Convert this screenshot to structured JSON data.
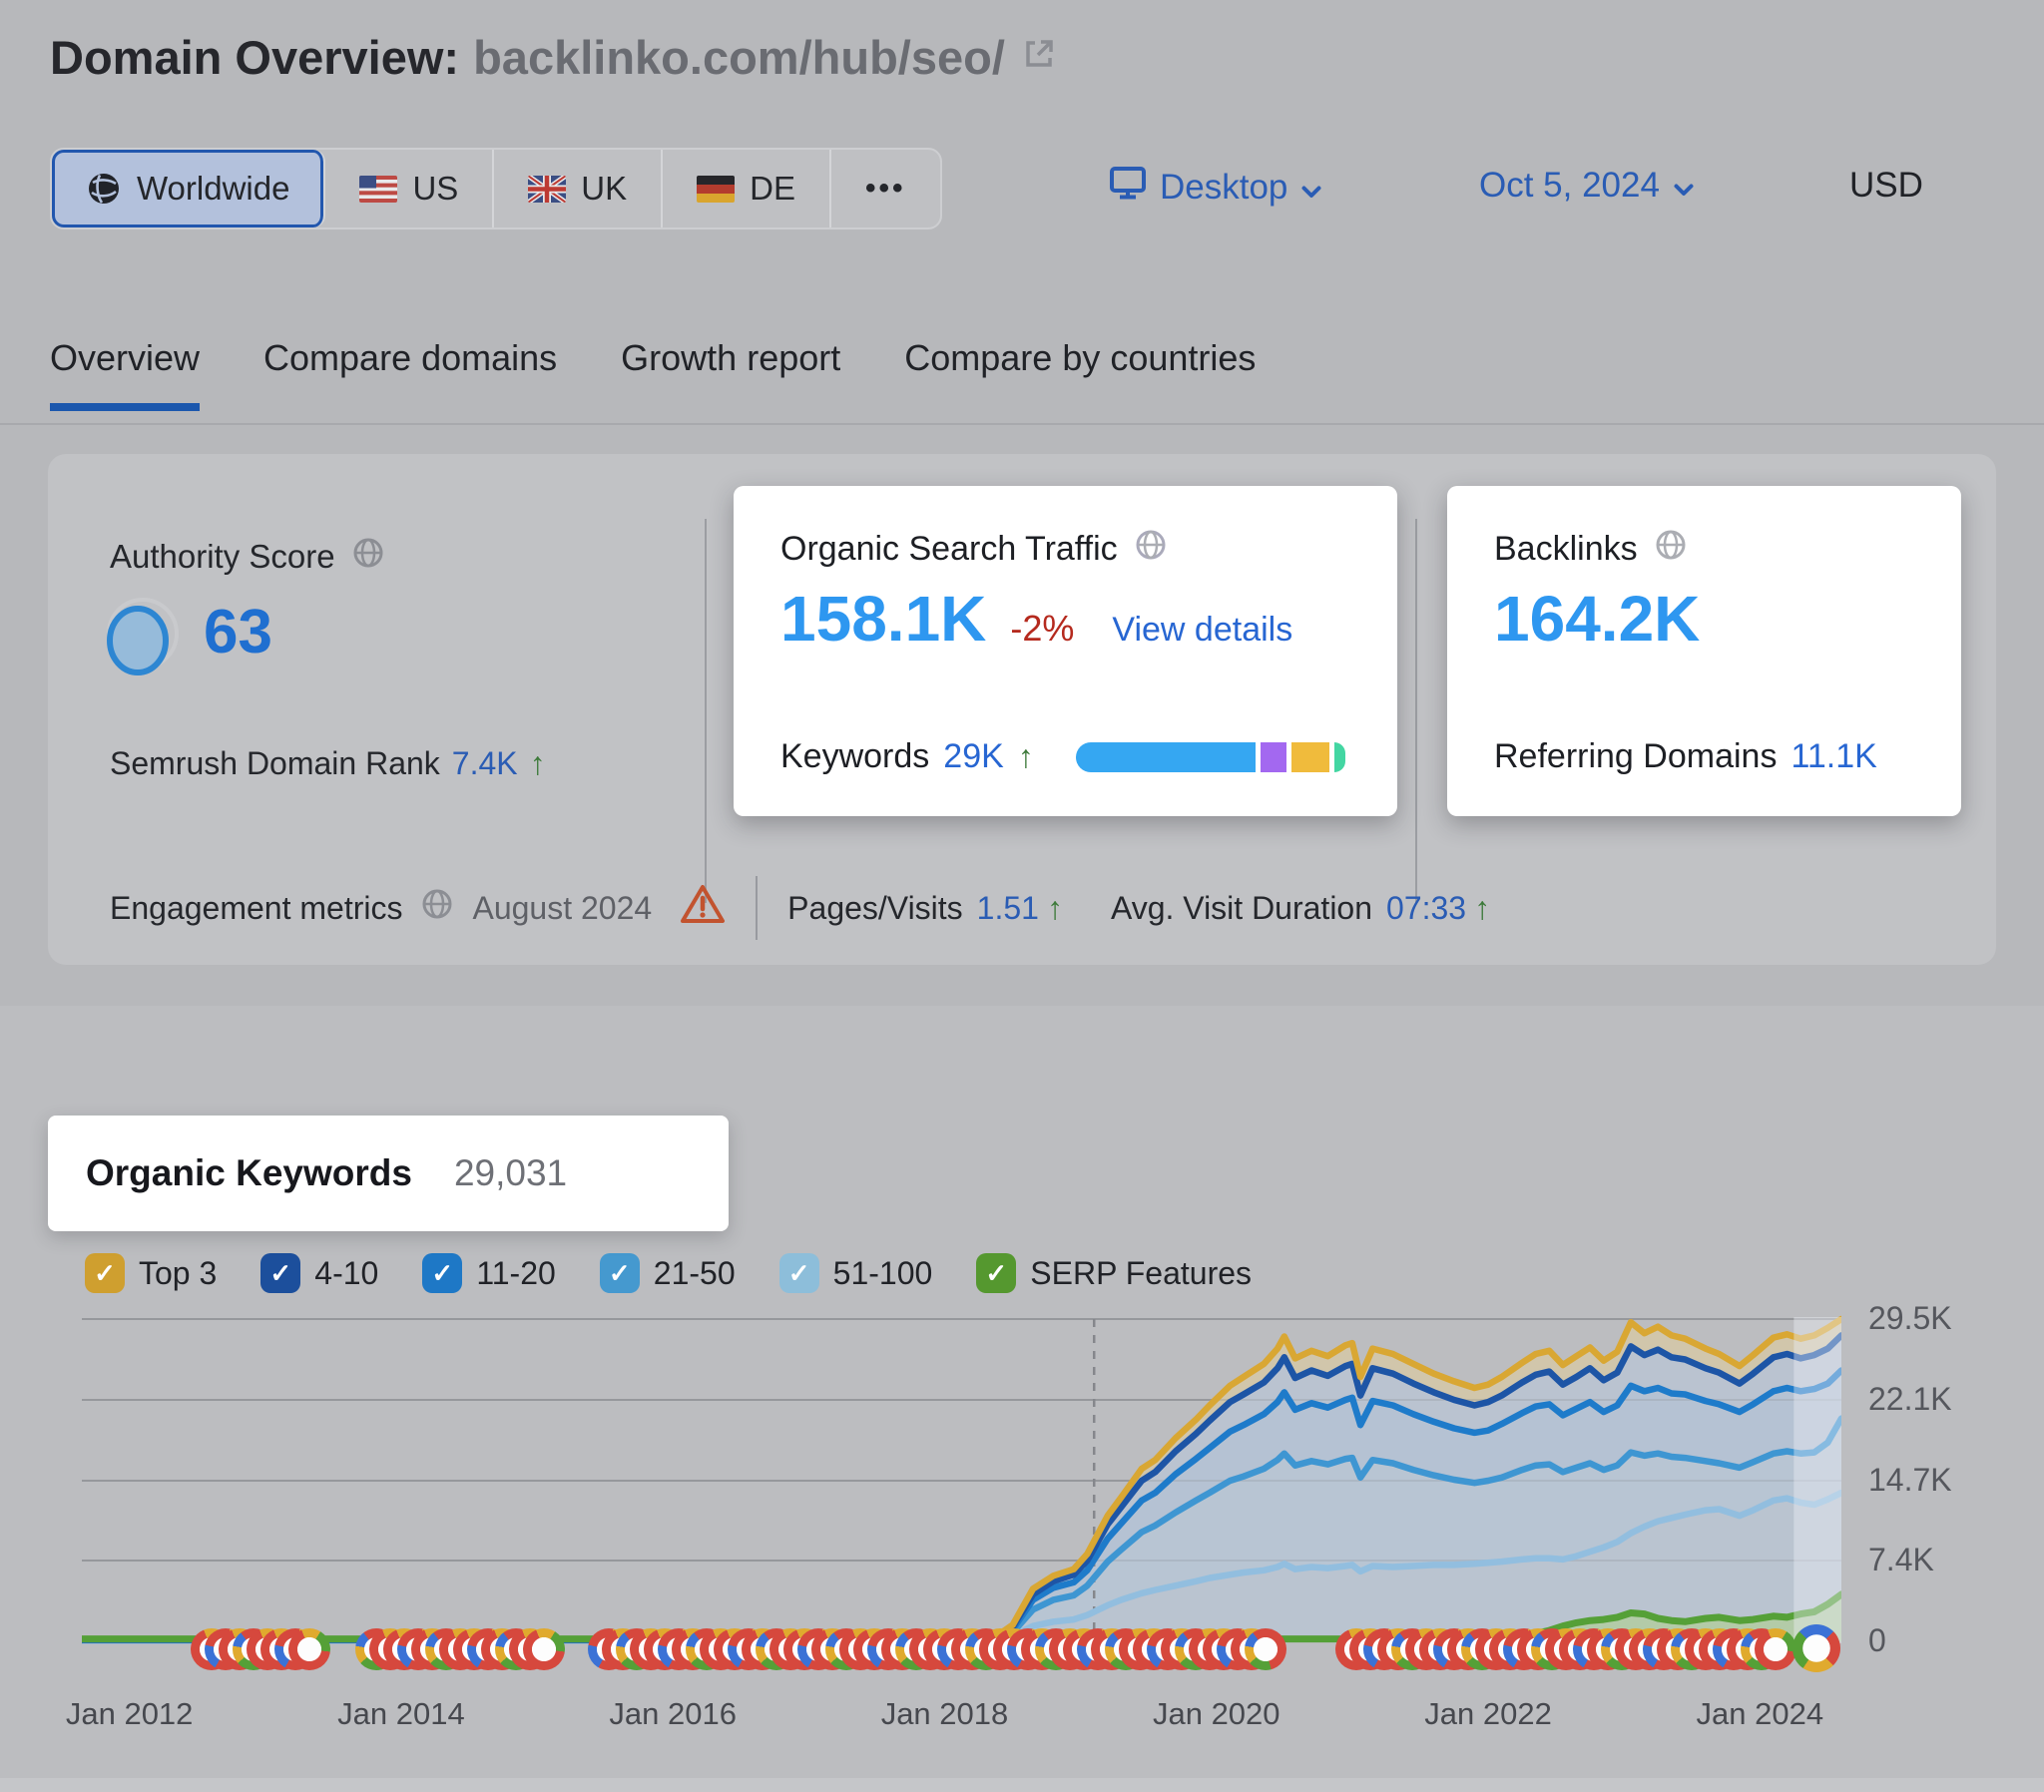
{
  "header": {
    "title_label": "Domain Overview:",
    "title_domain": "backlinko.com/hub/seo/"
  },
  "filters": {
    "regions": [
      {
        "label": "Worldwide",
        "icon": "globe",
        "selected": true
      },
      {
        "label": "US",
        "flag": "us",
        "selected": false
      },
      {
        "label": "UK",
        "flag": "uk",
        "selected": false
      },
      {
        "label": "DE",
        "flag": "de",
        "selected": false
      }
    ],
    "more_label": "•••",
    "device_label": "Desktop",
    "date_label": "Oct 5, 2024",
    "currency_label": "USD"
  },
  "tabs": [
    {
      "label": "Overview",
      "active": true
    },
    {
      "label": "Compare domains",
      "active": false
    },
    {
      "label": "Growth report",
      "active": false
    },
    {
      "label": "Compare by countries",
      "active": false
    }
  ],
  "metrics": {
    "authority": {
      "title": "Authority Score",
      "score": "63",
      "sub_label": "Semrush Domain Rank",
      "sub_value": "7.4K",
      "trend": "↑"
    },
    "traffic": {
      "title": "Organic Search Traffic",
      "value": "158.1K",
      "change": "-2%",
      "link": "View details",
      "keywords_label": "Keywords",
      "keywords_value": "29K",
      "trend": "↑",
      "bar_segments": [
        {
          "name": "blue",
          "color": "#35a7f2",
          "width": 180
        },
        {
          "name": "purple",
          "color": "#a368f0",
          "width": 26
        },
        {
          "name": "yellow",
          "color": "#f0bb3c",
          "width": 38
        },
        {
          "name": "green",
          "color": "#43d6a2",
          "width": 11
        }
      ]
    },
    "backlinks": {
      "title": "Backlinks",
      "value": "164.2K",
      "sub_label": "Referring Domains",
      "sub_value": "11.1K"
    },
    "engagement": {
      "title": "Engagement metrics",
      "period": "August 2024",
      "pages_label": "Pages/Visits",
      "pages_value": "1.51",
      "duration_label": "Avg. Visit Duration",
      "duration_value": "07:33",
      "trend": "↑"
    }
  },
  "keywords_section": {
    "title": "Organic Keywords",
    "count": "29,031"
  },
  "chart_data": {
    "type": "area",
    "title": "Organic Keywords positions over time",
    "xrange": [
      2011.65,
      2024.6
    ],
    "ymax": 29.5,
    "grid": true,
    "dashed_line_x": 2019.1,
    "highlight_band_x": [
      2024.25,
      2024.6
    ],
    "yticks": [
      {
        "label": "29.5K",
        "v": 29.5
      },
      {
        "label": "22.1K",
        "v": 22.1
      },
      {
        "label": "14.7K",
        "v": 14.7
      },
      {
        "label": "7.4K",
        "v": 7.4
      },
      {
        "label": "0",
        "v": 0
      }
    ],
    "xticks": [
      {
        "label": "Jan 2012",
        "year": 2012
      },
      {
        "label": "Jan 2014",
        "year": 2014
      },
      {
        "label": "Jan 2016",
        "year": 2016
      },
      {
        "label": "Jan 2018",
        "year": 2018
      },
      {
        "label": "Jan 2020",
        "year": 2020
      },
      {
        "label": "Jan 2022",
        "year": 2022
      },
      {
        "label": "Jan 2024",
        "year": 2024
      }
    ],
    "x": [
      2011.65,
      2018.35,
      2018.5,
      2018.65,
      2018.8,
      2018.95,
      2019.05,
      2019.2,
      2019.3,
      2019.45,
      2019.55,
      2019.7,
      2019.85,
      2019.95,
      2020.1,
      2020.2,
      2020.35,
      2020.45,
      2020.5,
      2020.58,
      2020.7,
      2020.82,
      2020.95,
      2021.0,
      2021.06,
      2021.15,
      2021.3,
      2021.45,
      2021.6,
      2021.75,
      2021.9,
      2022.0,
      2022.1,
      2022.25,
      2022.35,
      2022.45,
      2022.55,
      2022.65,
      2022.75,
      2022.85,
      2022.95,
      2023.05,
      2023.15,
      2023.25,
      2023.35,
      2023.45,
      2023.6,
      2023.7,
      2023.85,
      2023.95,
      2024.1,
      2024.2,
      2024.3,
      2024.4,
      2024.5,
      2024.6
    ],
    "series": [
      {
        "name": "Top 3",
        "color": "#d9a733",
        "fill": "#d2c7a9",
        "values": [
          0.2,
          0.2,
          1.5,
          4.8,
          6.0,
          6.6,
          8.0,
          11.5,
          13.2,
          15.8,
          16.6,
          18.6,
          20.3,
          21.6,
          23.4,
          24.2,
          25.4,
          26.8,
          27.9,
          25.9,
          26.6,
          26.1,
          27.1,
          27.3,
          24.2,
          26.8,
          26.3,
          25.4,
          24.5,
          23.8,
          23.2,
          23.5,
          24.2,
          25.5,
          26.3,
          26.6,
          25.3,
          26.1,
          26.9,
          25.7,
          26.5,
          29.2,
          28.2,
          28.8,
          28.0,
          27.7,
          26.8,
          26.3,
          25.2,
          26.2,
          27.8,
          28.1,
          27.7,
          28.0,
          28.7,
          29.5
        ]
      },
      {
        "name": "4-10",
        "color": "#1d55a6",
        "fill": "#b7c2d2",
        "values": [
          0.16,
          0.16,
          1.3,
          4.3,
          5.5,
          6.1,
          7.4,
          10.7,
          12.3,
          14.7,
          15.5,
          17.4,
          19.0,
          20.2,
          21.9,
          22.6,
          23.7,
          25.0,
          26.0,
          24.1,
          24.8,
          24.3,
          25.2,
          25.4,
          22.5,
          25.0,
          24.5,
          23.6,
          22.8,
          22.1,
          21.6,
          21.9,
          22.5,
          23.7,
          24.4,
          24.7,
          23.5,
          24.2,
          25.0,
          23.9,
          24.6,
          27.0,
          26.2,
          26.7,
          26.0,
          25.8,
          25.0,
          24.6,
          23.6,
          24.5,
          26.0,
          26.3,
          25.9,
          26.2,
          26.8,
          28.0
        ]
      },
      {
        "name": "11-20",
        "color": "#1e7bca",
        "fill": "#b4c2d3",
        "values": [
          0.13,
          0.13,
          1.1,
          3.8,
          4.9,
          5.4,
          6.5,
          9.4,
          10.8,
          12.9,
          13.6,
          15.3,
          16.7,
          17.7,
          19.2,
          19.8,
          20.8,
          21.9,
          22.8,
          21.2,
          21.8,
          21.4,
          22.1,
          22.3,
          19.8,
          22.0,
          21.6,
          20.8,
          20.1,
          19.5,
          19.1,
          19.3,
          19.9,
          20.9,
          21.5,
          21.7,
          20.7,
          21.3,
          21.9,
          21.0,
          21.6,
          23.4,
          22.9,
          23.2,
          22.7,
          22.6,
          22.0,
          21.7,
          21.0,
          21.7,
          22.9,
          23.2,
          22.9,
          23.1,
          23.6,
          24.8
        ]
      },
      {
        "name": "21-50",
        "color": "#3e96d2",
        "fill": "#b9c5d2",
        "values": [
          0.1,
          0.1,
          0.8,
          2.9,
          3.8,
          4.2,
          5.1,
          7.3,
          8.4,
          10.0,
          10.6,
          11.8,
          12.9,
          13.6,
          14.7,
          15.1,
          15.8,
          16.6,
          17.2,
          16.1,
          16.5,
          16.2,
          16.7,
          16.8,
          15.0,
          16.6,
          16.3,
          15.7,
          15.2,
          14.8,
          14.5,
          14.7,
          15.0,
          15.7,
          16.1,
          16.2,
          15.5,
          15.9,
          16.3,
          15.7,
          16.1,
          17.3,
          17.0,
          17.2,
          16.9,
          16.8,
          16.5,
          16.3,
          15.9,
          16.4,
          17.2,
          17.4,
          17.2,
          17.3,
          18.2,
          20.4
        ]
      },
      {
        "name": "51-100",
        "color": "#92bedf",
        "fill": "#bac3cf",
        "values": [
          0.08,
          0.08,
          0.5,
          1.4,
          1.8,
          2.0,
          2.4,
          3.3,
          3.8,
          4.4,
          4.7,
          5.1,
          5.5,
          5.8,
          6.1,
          6.3,
          6.5,
          6.8,
          7.1,
          6.6,
          6.8,
          6.7,
          6.9,
          7.0,
          6.4,
          6.9,
          6.8,
          6.9,
          7.0,
          7.0,
          7.1,
          7.2,
          7.3,
          7.5,
          7.6,
          7.6,
          7.5,
          7.8,
          8.2,
          8.6,
          9.1,
          9.9,
          10.5,
          11.0,
          11.3,
          11.6,
          12.0,
          12.1,
          11.5,
          12.0,
          12.9,
          13.1,
          12.7,
          12.5,
          13.0,
          13.6
        ]
      },
      {
        "name": "SERP Features",
        "color": "#55a037",
        "fill": "#b2cba4",
        "values": [
          0.22,
          0.22,
          0.22,
          0.22,
          0.22,
          0.22,
          0.22,
          0.22,
          0.22,
          0.22,
          0.22,
          0.22,
          0.22,
          0.22,
          0.22,
          0.22,
          0.22,
          0.22,
          0.22,
          0.22,
          0.22,
          0.22,
          0.22,
          0.22,
          0.22,
          0.22,
          0.22,
          0.22,
          0.22,
          0.22,
          0.22,
          0.22,
          0.22,
          0.3,
          0.7,
          1.0,
          1.4,
          1.7,
          1.9,
          2.0,
          2.2,
          2.6,
          2.5,
          2.1,
          1.9,
          1.8,
          2.1,
          2.2,
          1.9,
          2.0,
          2.3,
          2.2,
          2.5,
          2.7,
          3.4,
          4.3
        ]
      }
    ],
    "legend": [
      {
        "label": "Top 3",
        "color": "#cf9f2f",
        "checked": true
      },
      {
        "label": "4-10",
        "color": "#1c4f9c",
        "checked": true
      },
      {
        "label": "11-20",
        "color": "#1e78c6",
        "checked": true
      },
      {
        "label": "21-50",
        "color": "#4599cf",
        "checked": true
      },
      {
        "label": "51-100",
        "color": "#8dbeda",
        "checked": true
      },
      {
        "label": "SERP Features",
        "color": "#55982f",
        "checked": true
      }
    ],
    "annotations": {
      "icon": "google-update-icon",
      "runs": [
        [
          191,
          330
        ],
        [
          356,
          563
        ],
        [
          589,
          1285
        ],
        [
          1338,
          1795
        ]
      ],
      "step": 14,
      "final_g_x": 1796
    }
  }
}
